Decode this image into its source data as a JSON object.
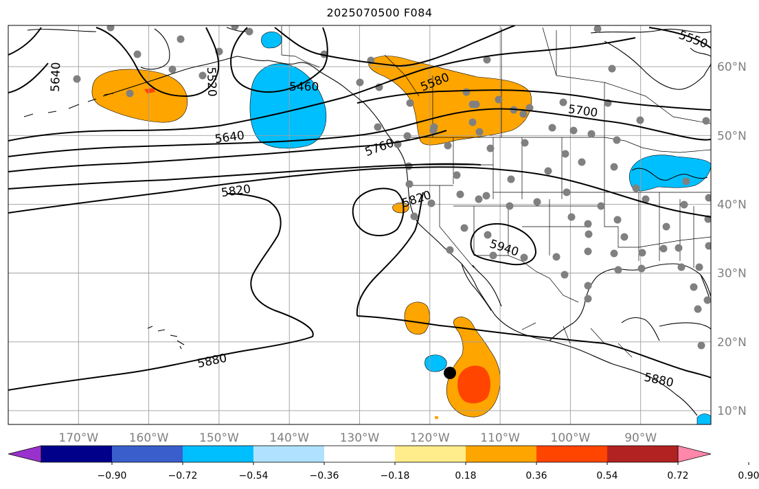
{
  "title": "2025070500 F084",
  "map": {
    "lon_range": [
      -180,
      -80
    ],
    "lat_range": [
      8,
      66
    ],
    "lon_labels": [
      "170°W",
      "160°W",
      "150°W",
      "140°W",
      "130°W",
      "120°W",
      "110°W",
      "100°W",
      "90°W"
    ],
    "lat_labels": [
      "60°N",
      "50°N",
      "40°N",
      "30°N",
      "20°N",
      "10°N"
    ],
    "gridline_color": "#9e9e9e",
    "coast_color": "#000000"
  },
  "contour_labels": [
    {
      "text": "5640",
      "lon": -173.3,
      "lat": 58.5,
      "angle": -88
    },
    {
      "text": "5520",
      "lon": -151.0,
      "lat": 57.8,
      "angle": 88
    },
    {
      "text": "5460",
      "lon": -137.9,
      "lat": 57.1,
      "angle": 0
    },
    {
      "text": "5580",
      "lon": -119.3,
      "lat": 57.8,
      "angle": -22
    },
    {
      "text": "5550",
      "lon": -82.5,
      "lat": 64.0,
      "angle": 20
    },
    {
      "text": "5700",
      "lon": -98.2,
      "lat": 53.6,
      "angle": 8
    },
    {
      "text": "5640",
      "lon": -148.5,
      "lat": 49.8,
      "angle": -8
    },
    {
      "text": "5760",
      "lon": -127.2,
      "lat": 48.3,
      "angle": -20
    },
    {
      "text": "5820",
      "lon": -147.6,
      "lat": 42.0,
      "angle": -8
    },
    {
      "text": "5820",
      "lon": -121.9,
      "lat": 40.8,
      "angle": -18
    },
    {
      "text": "5940",
      "lon": -109.4,
      "lat": 33.7,
      "angle": 18
    },
    {
      "text": "5880",
      "lon": -151.0,
      "lat": 17.3,
      "angle": -12
    },
    {
      "text": "5880",
      "lon": -87.4,
      "lat": 14.5,
      "angle": 12
    }
  ],
  "colorbar": {
    "ticks": [
      "−0.90",
      "−0.72",
      "−0.54",
      "−0.36",
      "−0.18",
      "0.18",
      "0.36",
      "0.54",
      "0.72",
      "0.90"
    ],
    "under_color": "#9932cc",
    "over_color": "#ff88aa",
    "colors": [
      "#00008b",
      "#3a5fcd",
      "#00bfff",
      "#b0e2ff",
      "#ffffff",
      "#ffec8b",
      "#ffa500",
      "#ff4500",
      "#b22222"
    ]
  },
  "legend_colors": {
    "negative_fill": "#00bfff",
    "positive_fill": "#ffa500",
    "strong_positive_fill": "#ff4500",
    "station_dot": "#808080",
    "storm_marker": "#000000"
  }
}
